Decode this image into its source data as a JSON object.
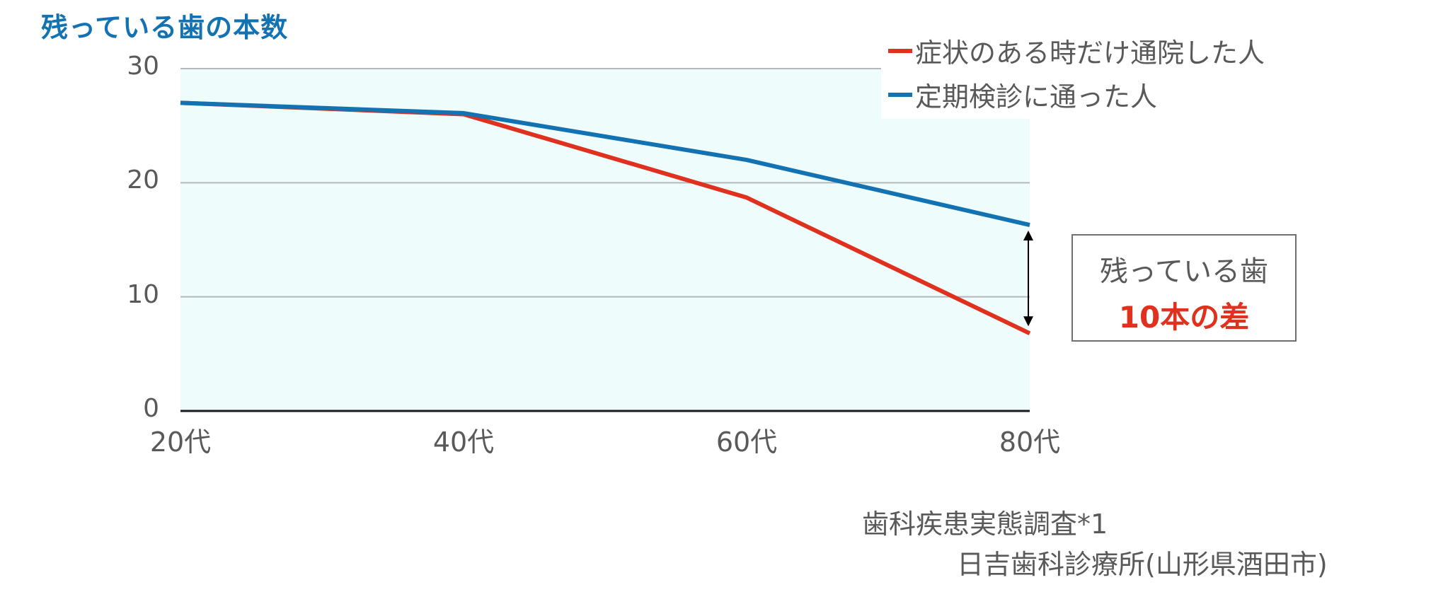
{
  "title": "残っている歯の本数",
  "colors": {
    "title": "#1272b2",
    "series_symptomatic": "#e0301e",
    "series_regular": "#1272b2",
    "plot_bg": "#effcfc",
    "grid": "#b4b8ba",
    "axis": "#1a1a1a",
    "text": "#595959"
  },
  "yaxis": {
    "ticks": [
      "0",
      "10",
      "20",
      "30"
    ]
  },
  "xaxis": {
    "ticks": [
      "20代",
      "40代",
      "60代",
      "80代"
    ]
  },
  "legend": {
    "items": [
      {
        "label": "症状のある時だけ通院した人",
        "color": "#e0301e"
      },
      {
        "label": "定期検診に通った人",
        "color": "#1272b2"
      }
    ]
  },
  "annotation": {
    "line1": "残っている歯",
    "line2": "10本の差"
  },
  "source": {
    "line1": "歯科疾患実態調査*1",
    "line2": "日吉歯科診療所(山形県酒田市)"
  },
  "chart_data": {
    "type": "line",
    "title": "残っている歯の本数",
    "xlabel": "",
    "ylabel": "",
    "categories": [
      "20代",
      "40代",
      "60代",
      "80代"
    ],
    "series": [
      {
        "name": "症状のある時だけ通院した人",
        "color": "#e0301e",
        "values": [
          27.0,
          26.0,
          18.7,
          6.8
        ]
      },
      {
        "name": "定期検診に通った人",
        "color": "#1272b2",
        "values": [
          27.0,
          26.1,
          22.0,
          16.3
        ]
      }
    ],
    "ylim": [
      0,
      30
    ],
    "yticks": [
      0,
      10,
      20,
      30
    ],
    "grid": true,
    "legend_position": "top-right",
    "annotations": [
      {
        "text": "残っている歯 10本の差",
        "at": "80代",
        "type": "double-arrow between series"
      }
    ]
  }
}
